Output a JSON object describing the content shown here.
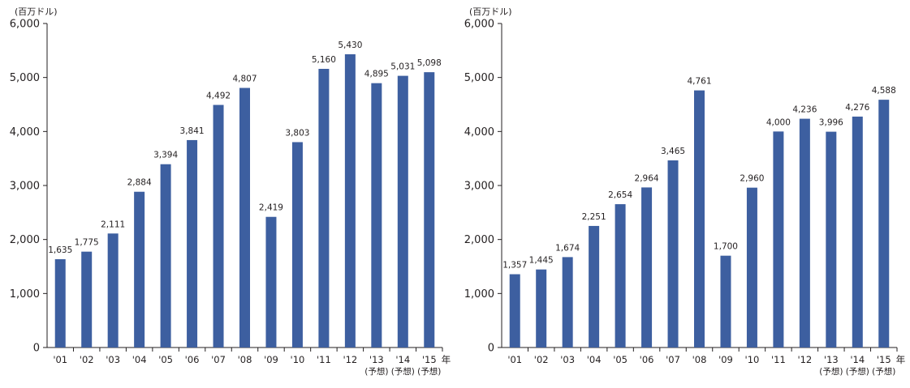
{
  "chart_data": [
    {
      "type": "bar",
      "unit_label": "(百万ドル)",
      "x_unit": "年",
      "categories": [
        "'01",
        "'02",
        "'03",
        "'04",
        "'05",
        "'06",
        "'07",
        "'08",
        "'09",
        "'10",
        "'11",
        "'12",
        "'13",
        "'14",
        "'15"
      ],
      "values": [
        1635,
        1775,
        2111,
        2884,
        3394,
        3841,
        4492,
        4807,
        2419,
        3803,
        5160,
        5430,
        4895,
        5031,
        5098
      ],
      "value_labels": [
        "1,635",
        "1,775",
        "2,111",
        "2,884",
        "3,394",
        "3,841",
        "4,492",
        "4,807",
        "2,419",
        "3,803",
        "5,160",
        "5,430",
        "4,895",
        "5,031",
        "5,098"
      ],
      "forecast_note": "(予想)",
      "forecast_categories": [
        "'13",
        "'14",
        "'15"
      ],
      "y_ticks": [
        0,
        1000,
        2000,
        3000,
        4000,
        5000,
        6000
      ],
      "y_tick_labels": [
        "0",
        "1,000",
        "2,000",
        "3,000",
        "4,000",
        "5,000",
        "6,000"
      ],
      "ylim": [
        0,
        6000
      ],
      "bar_color": "#3d5fa0",
      "grid": false
    },
    {
      "type": "bar",
      "unit_label": "(百万ドル)",
      "x_unit": "年",
      "categories": [
        "'01",
        "'02",
        "'03",
        "'04",
        "'05",
        "'06",
        "'07",
        "'08",
        "'09",
        "'10",
        "'11",
        "'12",
        "'13",
        "'14",
        "'15"
      ],
      "values": [
        1357,
        1445,
        1674,
        2251,
        2654,
        2964,
        3465,
        4761,
        1700,
        2960,
        4000,
        4236,
        3996,
        4276,
        4588
      ],
      "value_labels": [
        "1,357",
        "1,445",
        "1,674",
        "2,251",
        "2,654",
        "2,964",
        "3,465",
        "4,761",
        "1,700",
        "2,960",
        "4,000",
        "4,236",
        "3,996",
        "4,276",
        "4,588"
      ],
      "forecast_note": "(予想)",
      "forecast_categories": [
        "'13",
        "'14",
        "'15"
      ],
      "y_ticks": [
        0,
        1000,
        2000,
        3000,
        4000,
        5000,
        6000
      ],
      "y_tick_labels": [
        "0",
        "1,000",
        "2,000",
        "3,000",
        "4,000",
        "5,000",
        "6,000"
      ],
      "ylim": [
        0,
        6000
      ],
      "bar_color": "#3d5fa0",
      "grid": false
    }
  ]
}
